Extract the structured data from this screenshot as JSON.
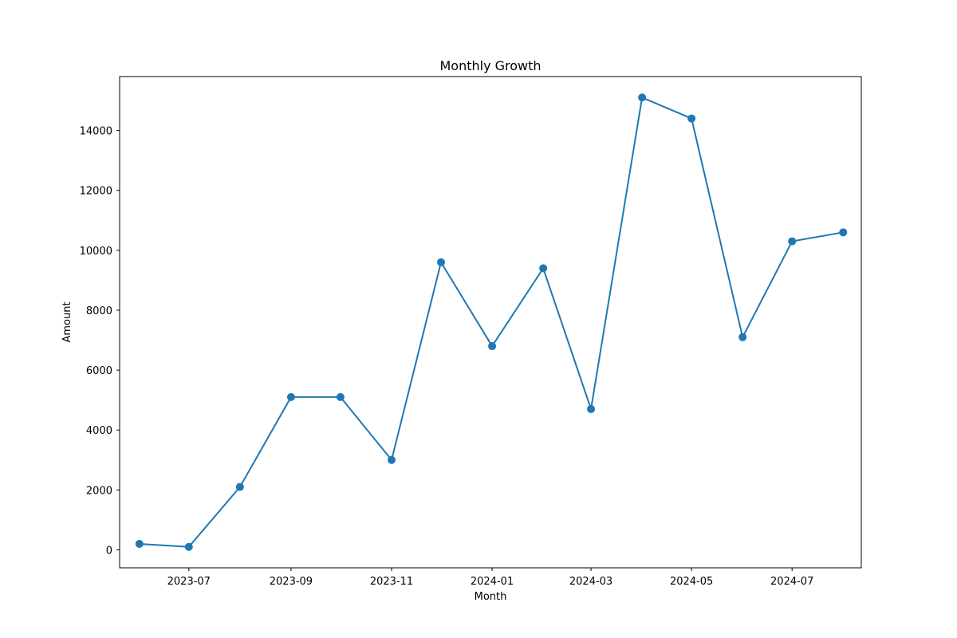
{
  "chart_data": {
    "type": "line",
    "title": "Monthly Growth",
    "xlabel": "Month",
    "ylabel": "Amount",
    "x_ticks": [
      "2023-07",
      "2023-09",
      "2023-11",
      "2024-01",
      "2024-03",
      "2024-05",
      "2024-07"
    ],
    "y_ticks": [
      0,
      2000,
      4000,
      6000,
      8000,
      10000,
      12000,
      14000
    ],
    "ylim": [
      -600,
      15800
    ],
    "xlim": [
      "2023-05-20",
      "2024-08-12"
    ],
    "grid": false,
    "legend": "none",
    "series": [
      {
        "color": "#1f77b4",
        "marker": "circle",
        "points": [
          {
            "x": "2023-06-01",
            "y": 200
          },
          {
            "x": "2023-07-01",
            "y": 100
          },
          {
            "x": "2023-08-01",
            "y": 2100
          },
          {
            "x": "2023-09-01",
            "y": 5100
          },
          {
            "x": "2023-10-01",
            "y": 5100
          },
          {
            "x": "2023-11-01",
            "y": 3000
          },
          {
            "x": "2023-12-01",
            "y": 9600
          },
          {
            "x": "2024-01-01",
            "y": 6800
          },
          {
            "x": "2024-02-01",
            "y": 9400
          },
          {
            "x": "2024-03-01",
            "y": 4700
          },
          {
            "x": "2024-04-01",
            "y": 15100
          },
          {
            "x": "2024-05-01",
            "y": 14400
          },
          {
            "x": "2024-06-01",
            "y": 7100
          },
          {
            "x": "2024-07-01",
            "y": 10300
          },
          {
            "x": "2024-08-01",
            "y": 10600
          }
        ]
      }
    ]
  }
}
